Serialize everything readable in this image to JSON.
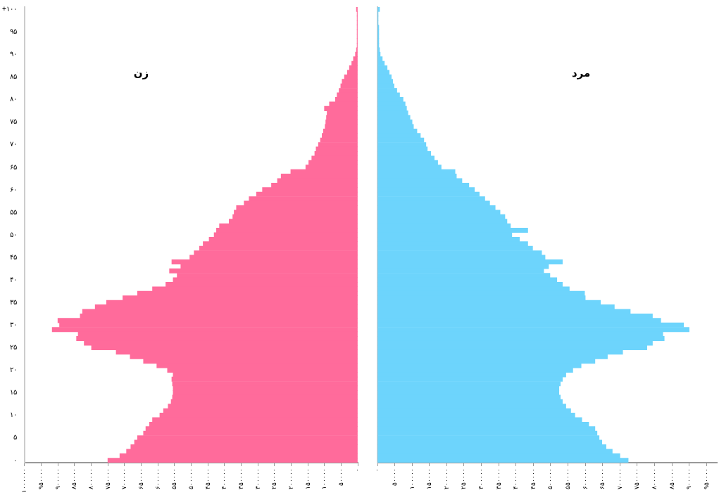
{
  "chart_data": [
    {
      "type": "bar",
      "orientation": "horizontal",
      "categories": [
        "+۱۰۰",
        null,
        null,
        null,
        null,
        "۹۵",
        null,
        null,
        null,
        null,
        "۹۰",
        null,
        null,
        null,
        null,
        "۸۵",
        null,
        null,
        null,
        null,
        "۸۰",
        null,
        null,
        null,
        null,
        "۷۵",
        null,
        null,
        null,
        null,
        "۷۰",
        null,
        null,
        null,
        null,
        "۶۵",
        null,
        null,
        null,
        null,
        "۶۰",
        null,
        null,
        null,
        null,
        "۵۵",
        null,
        null,
        null,
        null,
        "۵۰",
        null,
        null,
        null,
        null,
        "۴۵",
        null,
        null,
        null,
        null,
        "۴۰",
        null,
        null,
        null,
        null,
        "۳۵",
        null,
        null,
        null,
        null,
        "۳۰",
        null,
        null,
        null,
        null,
        "۲۵",
        null,
        null,
        null,
        null,
        "۲۰",
        null,
        null,
        null,
        null,
        "۱۵",
        null,
        null,
        null,
        null,
        "۱۰",
        null,
        null,
        null,
        null,
        "۵",
        null,
        null,
        null,
        null,
        "۰"
      ],
      "series": [
        {
          "name": "زن",
          "color": "#ff6b9b",
          "values": [
            4000,
            2000,
            2000,
            2000,
            2000,
            2000,
            2000,
            2000,
            2000,
            4000,
            7000,
            13000,
            18000,
            25000,
            31000,
            40000,
            47000,
            51000,
            56000,
            62000,
            67000,
            85000,
            100000,
            92000,
            94000,
            96000,
            98000,
            103000,
            107000,
            112000,
            118000,
            125000,
            129000,
            138000,
            147000,
            156000,
            201000,
            230000,
            241000,
            259000,
            286000,
            304000,
            326000,
            341000,
            364000,
            371000,
            375000,
            386000,
            415000,
            424000,
            431000,
            446000,
            464000,
            475000,
            491000,
            504000,
            558000,
            531000,
            565000,
            542000,
            554000,
            576000,
            616000,
            661000,
            705000,
            754000,
            788000,
            826000,
            833000,
            900000,
            895000,
            917000,
            839000,
            844000,
            821000,
            799000,
            725000,
            683000,
            643000,
            603000,
            571000,
            554000,
            558000,
            556000,
            554000,
            554000,
            556000,
            560000,
            569000,
            583000,
            594000,
            616000,
            625000,
            636000,
            643000,
            661000,
            670000,
            681000,
            694000,
            714000,
            750000
          ]
        }
      ],
      "xlim": [
        1000000,
        0
      ],
      "xticks": [
        {
          "value": 0,
          "label": "۰"
        },
        {
          "value": 50000,
          "label": "۵۰۰۰۰"
        },
        {
          "value": 100000,
          "label": "۱۰۰۰۰۰"
        },
        {
          "value": 150000,
          "label": "۱۵۰۰۰۰"
        },
        {
          "value": 200000,
          "label": "۲۰۰۰۰۰"
        },
        {
          "value": 250000,
          "label": "۲۵۰۰۰۰"
        },
        {
          "value": 300000,
          "label": "۳۰۰۰۰۰"
        },
        {
          "value": 350000,
          "label": "۳۵۰۰۰۰"
        },
        {
          "value": 400000,
          "label": "۴۰۰۰۰۰"
        },
        {
          "value": 450000,
          "label": "۴۵۰۰۰۰"
        },
        {
          "value": 500000,
          "label": "۵۰۰۰۰۰"
        },
        {
          "value": 550000,
          "label": "۵۵۰۰۰۰"
        },
        {
          "value": 600000,
          "label": "۶۰۰۰۰۰"
        },
        {
          "value": 650000,
          "label": "۶۵۰۰۰۰"
        },
        {
          "value": 700000,
          "label": "۷۰۰۰۰۰"
        },
        {
          "value": 750000,
          "label": "۷۵۰۰۰۰"
        },
        {
          "value": 800000,
          "label": "۸۰۰۰۰۰"
        },
        {
          "value": 850000,
          "label": "۸۵۰۰۰۰"
        },
        {
          "value": 900000,
          "label": "۹۰۰۰۰۰"
        },
        {
          "value": 950000,
          "label": "۹۵۰۰۰۰"
        },
        {
          "value": 1000000,
          "label": "۱۰۰۰۰۰۰"
        }
      ],
      "legend": false
    },
    {
      "type": "bar",
      "orientation": "horizontal",
      "tick_labels": "x",
      "categories": [
        "+۱۰۰",
        null,
        null,
        null,
        null,
        "۹۵",
        null,
        null,
        null,
        null,
        "۹۰",
        null,
        null,
        null,
        null,
        "۸۵",
        null,
        null,
        null,
        null,
        "۸۰",
        null,
        null,
        null,
        null,
        "۷۵",
        null,
        null,
        null,
        null,
        "۷۰",
        null,
        null,
        null,
        null,
        "۶۵",
        null,
        null,
        null,
        null,
        "۶۰",
        null,
        null,
        null,
        null,
        "۵۵",
        null,
        null,
        null,
        null,
        "۵۰",
        null,
        null,
        null,
        null,
        "۴۵",
        null,
        null,
        null,
        null,
        "۴۰",
        null,
        null,
        null,
        null,
        "۳۵",
        null,
        null,
        null,
        null,
        "۳۰",
        null,
        null,
        null,
        null,
        "۲۵",
        null,
        null,
        null,
        null,
        "۲۰",
        null,
        null,
        null,
        null,
        "۱۵",
        null,
        null,
        null,
        null,
        "۱۰",
        null,
        null,
        null,
        null,
        "۵",
        null,
        null,
        null,
        null,
        "۰"
      ],
      "series": [
        {
          "name": "مرد",
          "color": "#6dd4fc",
          "values": [
            6000,
            2000,
            2000,
            2000,
            4000,
            4000,
            4000,
            4000,
            4000,
            6000,
            8000,
            14000,
            20000,
            28000,
            34000,
            40000,
            44000,
            48000,
            56000,
            64000,
            74000,
            80000,
            84000,
            88000,
            94000,
            100000,
            104000,
            114000,
            124000,
            134000,
            140000,
            144000,
            154000,
            164000,
            174000,
            184000,
            224000,
            228000,
            244000,
            264000,
            280000,
            294000,
            310000,
            324000,
            340000,
            354000,
            368000,
            374000,
            384000,
            434000,
            388000,
            410000,
            434000,
            448000,
            474000,
            484000,
            534000,
            494000,
            480000,
            498000,
            518000,
            534000,
            554000,
            598000,
            600000,
            644000,
            684000,
            730000,
            794000,
            818000,
            884000,
            900000,
            824000,
            828000,
            794000,
            778000,
            708000,
            664000,
            628000,
            588000,
            564000,
            544000,
            534000,
            528000,
            524000,
            524000,
            528000,
            534000,
            544000,
            558000,
            570000,
            590000,
            610000,
            628000,
            634000,
            640000,
            648000,
            660000,
            678000,
            700000,
            724000
          ]
        }
      ],
      "xlim": [
        0,
        980000
      ],
      "xticks": [
        {
          "value": 0,
          "label": "۰"
        },
        {
          "value": 50000,
          "label": "۵۰۰۰۰"
        },
        {
          "value": 100000,
          "label": "۱۰۰۰۰۰"
        },
        {
          "value": 150000,
          "label": "۱۵۰۰۰۰"
        },
        {
          "value": 200000,
          "label": "۲۰۰۰۰۰"
        },
        {
          "value": 250000,
          "label": "۲۵۰۰۰۰"
        },
        {
          "value": 300000,
          "label": "۳۰۰۰۰۰"
        },
        {
          "value": 350000,
          "label": "۳۵۰۰۰۰"
        },
        {
          "value": 400000,
          "label": "۴۰۰۰۰۰"
        },
        {
          "value": 450000,
          "label": "۴۵۰۰۰۰"
        },
        {
          "value": 500000,
          "label": "۵۰۰۰۰۰"
        },
        {
          "value": 550000,
          "label": "۵۵۰۰۰۰"
        },
        {
          "value": 600000,
          "label": "۶۰۰۰۰۰"
        },
        {
          "value": 650000,
          "label": "۶۵۰۰۰۰"
        },
        {
          "value": 700000,
          "label": "۷۰۰۰۰۰"
        },
        {
          "value": 750000,
          "label": "۷۵۰۰۰۰"
        },
        {
          "value": 800000,
          "label": "۸۰۰۰۰۰"
        },
        {
          "value": 850000,
          "label": "۸۵۰۰۰۰"
        },
        {
          "value": 900000,
          "label": "۹۰۰۰۰۰"
        },
        {
          "value": 950000,
          "label": "۹۵۰۰۰۰"
        }
      ],
      "legend": false
    }
  ]
}
